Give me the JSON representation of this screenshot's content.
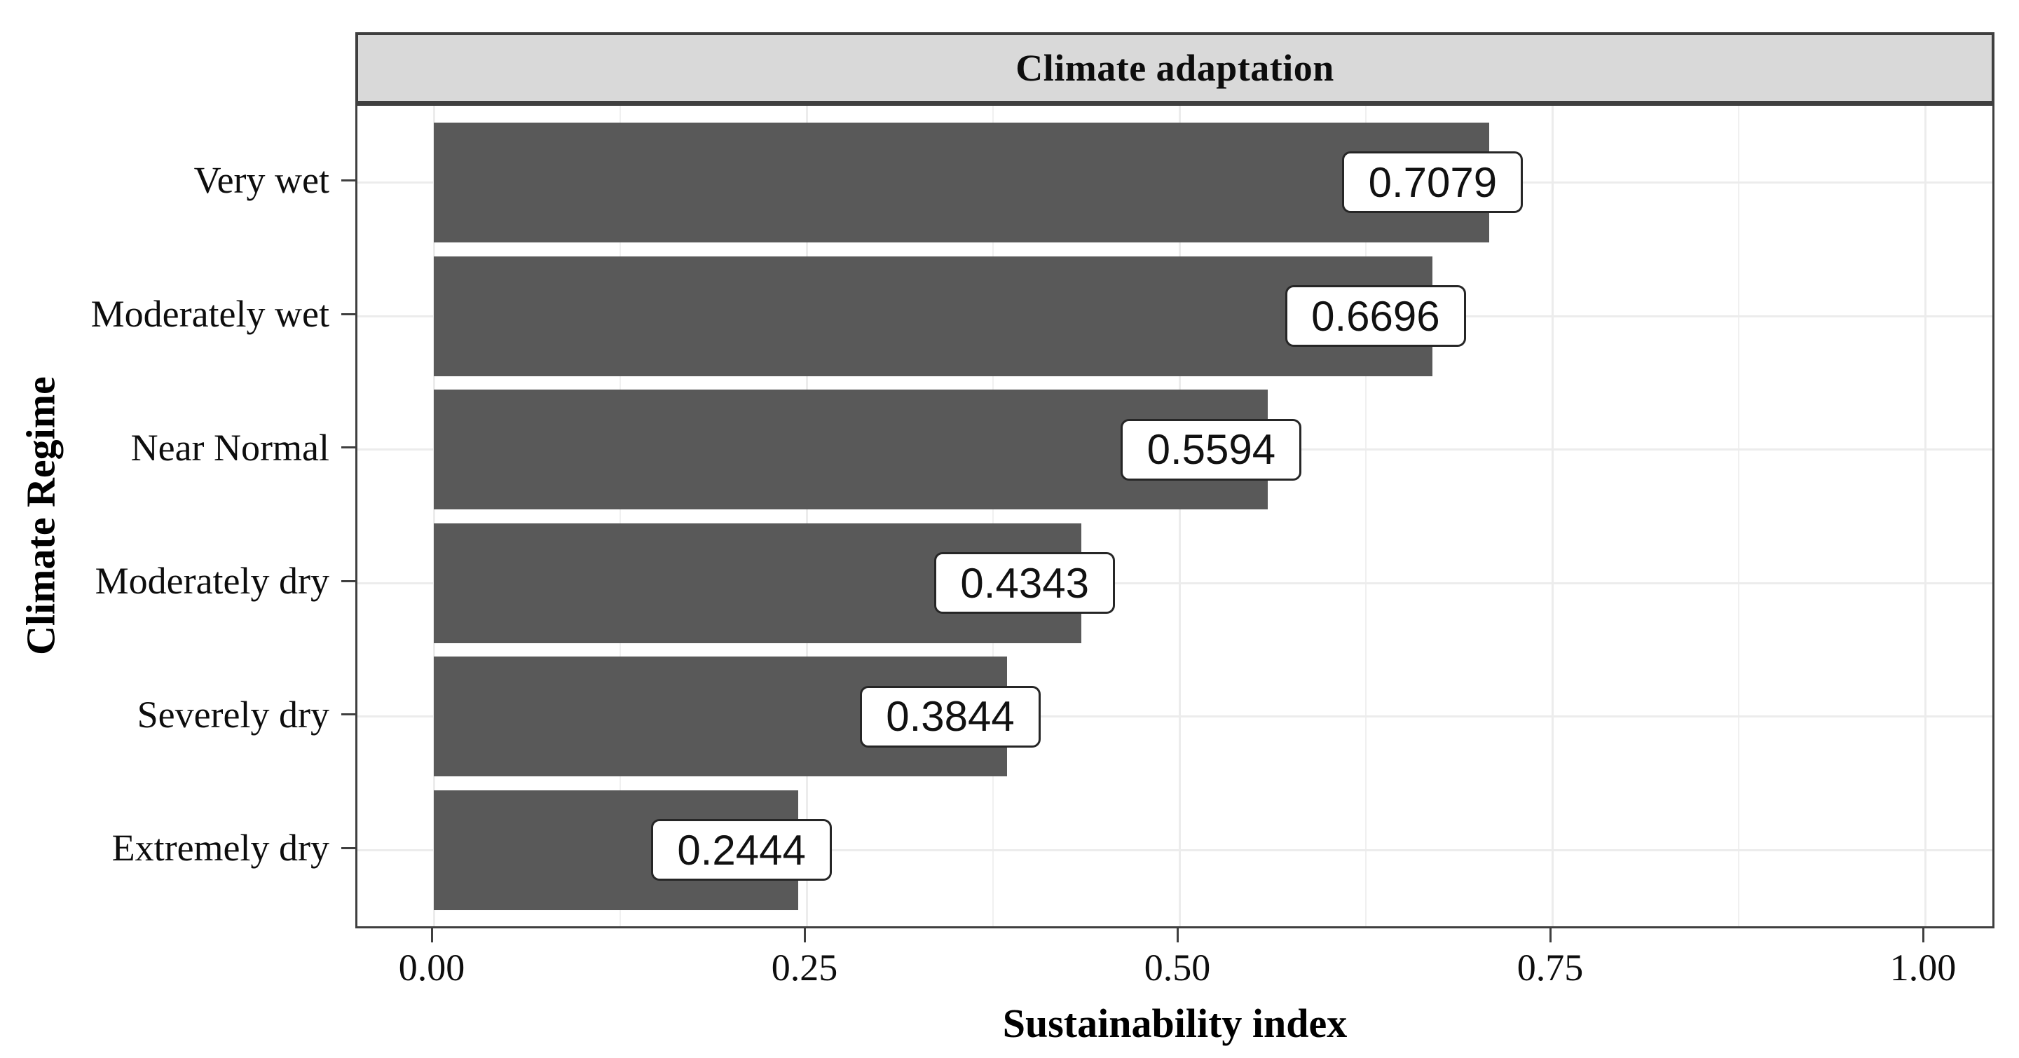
{
  "strip": {
    "title": "Climate adaptation",
    "fill": "#d9d9d9",
    "border_color": "#3f3f3f"
  },
  "chart_data": {
    "type": "bar",
    "orientation": "horizontal",
    "title": "Climate adaptation",
    "categories": [
      "Very wet",
      "Moderately wet",
      "Near Normal",
      "Moderately dry",
      "Severely dry",
      "Extremely dry"
    ],
    "values": [
      0.7079,
      0.6696,
      0.5594,
      0.4343,
      0.3844,
      0.2444
    ],
    "value_labels": [
      "0.7079",
      "0.6696",
      "0.5594",
      "0.4343",
      "0.3844",
      "0.2444"
    ],
    "xlabel": "Sustainability index",
    "ylabel": "Climate Regime",
    "xlim": [
      0,
      1
    ],
    "x_ticks": [
      "0.00",
      "0.25",
      "0.50",
      "0.75",
      "1.00"
    ],
    "x_tick_values": [
      0,
      0.25,
      0.5,
      0.75,
      1.0
    ],
    "x_minor_tick_values": [
      0.125,
      0.375,
      0.625,
      0.875
    ],
    "grid": true,
    "legend": "none",
    "bar_fill": "#595959",
    "gridline_color": "#ececec",
    "panel_background": "#ffffff"
  }
}
